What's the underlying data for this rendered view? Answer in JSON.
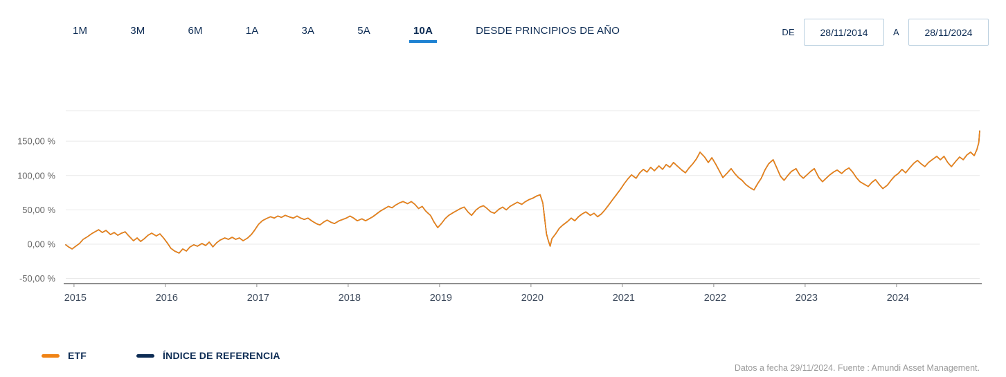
{
  "period_tabs": {
    "items": [
      {
        "label": "1M",
        "active": false
      },
      {
        "label": "3M",
        "active": false
      },
      {
        "label": "6M",
        "active": false
      },
      {
        "label": "1A",
        "active": false
      },
      {
        "label": "3A",
        "active": false
      },
      {
        "label": "5A",
        "active": false
      },
      {
        "label": "10A",
        "active": true
      },
      {
        "label": "DESDE PRINCIPIOS DE AÑO",
        "active": false
      }
    ],
    "active_underline_color": "#1e82d2"
  },
  "date_range": {
    "from_label": "DE",
    "from_value": "28/11/2014",
    "to_label": "A",
    "to_value": "28/11/2024"
  },
  "legend": {
    "items": [
      {
        "label": "ETF",
        "color": "#f08314"
      },
      {
        "label": "ÍNDICE DE REFERENCIA",
        "color": "#0d2c54"
      }
    ]
  },
  "footer": {
    "source_text": "Datos a fecha 29/11/2024. Fuente : Amundi Asset Management."
  },
  "colors": {
    "text_navy": "#0d2c54",
    "etf_orange": "#f08314",
    "benchmark_navy": "#0d2c54",
    "axis_label_gray": "#666666",
    "x_label_gray": "#3d4a5c",
    "grid_line": "#e9e9e9",
    "axis_line": "#8f8f8f",
    "input_border": "#b9cfdf",
    "footer_gray": "#9a9a9a"
  },
  "chart_data": {
    "type": "line",
    "title": "",
    "xlabel": "",
    "ylabel": "",
    "x_start": 2014.91,
    "x_end": 2024.91,
    "x_ticks": [
      2015,
      2016,
      2017,
      2018,
      2019,
      2020,
      2021,
      2022,
      2023,
      2024
    ],
    "y_ticks": [
      150,
      100,
      50,
      0,
      -50
    ],
    "y_tick_labels": [
      "150,00 %",
      "100,00 %",
      "50,00 %",
      "0,00 %",
      "-50,00 %"
    ],
    "ylim": [
      -57.5,
      194.5
    ],
    "grid": true,
    "legend_position": "bottom-left",
    "points_format": "[decimal_year, cumulative_return_pct] - values estimated from gridlines",
    "series": [
      {
        "name": "ÍNDICE DE REFERENCIA",
        "color": "#0d2c54",
        "note": "overlaps ETF line, hidden beneath it"
      },
      {
        "name": "ETF",
        "color": "#f08314"
      }
    ],
    "points": [
      [
        2014.91,
        -1
      ],
      [
        2014.94,
        -4
      ],
      [
        2014.98,
        -7
      ],
      [
        2015.02,
        -3
      ],
      [
        2015.06,
        1
      ],
      [
        2015.1,
        7
      ],
      [
        2015.15,
        11
      ],
      [
        2015.19,
        15
      ],
      [
        2015.23,
        18
      ],
      [
        2015.27,
        21
      ],
      [
        2015.31,
        17
      ],
      [
        2015.35,
        20
      ],
      [
        2015.4,
        14
      ],
      [
        2015.44,
        17
      ],
      [
        2015.48,
        13
      ],
      [
        2015.52,
        16
      ],
      [
        2015.56,
        18
      ],
      [
        2015.6,
        12
      ],
      [
        2015.65,
        5
      ],
      [
        2015.69,
        9
      ],
      [
        2015.73,
        4
      ],
      [
        2015.77,
        8
      ],
      [
        2015.81,
        13
      ],
      [
        2015.85,
        16
      ],
      [
        2015.9,
        12
      ],
      [
        2015.94,
        15
      ],
      [
        2015.98,
        9
      ],
      [
        2016.02,
        2
      ],
      [
        2016.06,
        -6
      ],
      [
        2016.1,
        -10
      ],
      [
        2016.15,
        -13
      ],
      [
        2016.19,
        -7
      ],
      [
        2016.23,
        -10
      ],
      [
        2016.27,
        -4
      ],
      [
        2016.31,
        -1
      ],
      [
        2016.35,
        -3
      ],
      [
        2016.4,
        1
      ],
      [
        2016.44,
        -2
      ],
      [
        2016.48,
        3
      ],
      [
        2016.52,
        -4
      ],
      [
        2016.56,
        2
      ],
      [
        2016.6,
        6
      ],
      [
        2016.65,
        9
      ],
      [
        2016.69,
        7
      ],
      [
        2016.73,
        10
      ],
      [
        2016.77,
        7
      ],
      [
        2016.81,
        9
      ],
      [
        2016.85,
        5
      ],
      [
        2016.9,
        9
      ],
      [
        2016.94,
        14
      ],
      [
        2016.98,
        21
      ],
      [
        2017.02,
        29
      ],
      [
        2017.06,
        34
      ],
      [
        2017.1,
        37
      ],
      [
        2017.15,
        40
      ],
      [
        2017.19,
        38
      ],
      [
        2017.23,
        41
      ],
      [
        2017.27,
        39
      ],
      [
        2017.31,
        42
      ],
      [
        2017.35,
        40
      ],
      [
        2017.4,
        38
      ],
      [
        2017.44,
        41
      ],
      [
        2017.48,
        38
      ],
      [
        2017.52,
        36
      ],
      [
        2017.56,
        38
      ],
      [
        2017.6,
        34
      ],
      [
        2017.65,
        30
      ],
      [
        2017.69,
        28
      ],
      [
        2017.73,
        32
      ],
      [
        2017.77,
        35
      ],
      [
        2017.81,
        32
      ],
      [
        2017.85,
        30
      ],
      [
        2017.9,
        34
      ],
      [
        2017.94,
        36
      ],
      [
        2017.98,
        38
      ],
      [
        2018.02,
        41
      ],
      [
        2018.06,
        38
      ],
      [
        2018.1,
        34
      ],
      [
        2018.15,
        37
      ],
      [
        2018.19,
        34
      ],
      [
        2018.23,
        37
      ],
      [
        2018.27,
        40
      ],
      [
        2018.31,
        44
      ],
      [
        2018.35,
        48
      ],
      [
        2018.4,
        52
      ],
      [
        2018.44,
        55
      ],
      [
        2018.48,
        53
      ],
      [
        2018.52,
        57
      ],
      [
        2018.56,
        60
      ],
      [
        2018.6,
        62
      ],
      [
        2018.65,
        59
      ],
      [
        2018.69,
        62
      ],
      [
        2018.73,
        58
      ],
      [
        2018.77,
        52
      ],
      [
        2018.81,
        55
      ],
      [
        2018.85,
        48
      ],
      [
        2018.9,
        42
      ],
      [
        2018.94,
        32
      ],
      [
        2018.98,
        24
      ],
      [
        2019.02,
        30
      ],
      [
        2019.06,
        37
      ],
      [
        2019.1,
        42
      ],
      [
        2019.15,
        46
      ],
      [
        2019.19,
        49
      ],
      [
        2019.23,
        52
      ],
      [
        2019.27,
        54
      ],
      [
        2019.31,
        47
      ],
      [
        2019.35,
        42
      ],
      [
        2019.4,
        50
      ],
      [
        2019.44,
        54
      ],
      [
        2019.48,
        56
      ],
      [
        2019.52,
        52
      ],
      [
        2019.56,
        47
      ],
      [
        2019.6,
        45
      ],
      [
        2019.65,
        51
      ],
      [
        2019.69,
        54
      ],
      [
        2019.73,
        50
      ],
      [
        2019.77,
        55
      ],
      [
        2019.81,
        58
      ],
      [
        2019.85,
        61
      ],
      [
        2019.9,
        58
      ],
      [
        2019.94,
        62
      ],
      [
        2019.98,
        65
      ],
      [
        2020.02,
        67
      ],
      [
        2020.06,
        70
      ],
      [
        2020.1,
        72
      ],
      [
        2020.13,
        60
      ],
      [
        2020.17,
        15
      ],
      [
        2020.19,
        5
      ],
      [
        2020.21,
        -3
      ],
      [
        2020.23,
        8
      ],
      [
        2020.27,
        15
      ],
      [
        2020.31,
        23
      ],
      [
        2020.35,
        28
      ],
      [
        2020.4,
        33
      ],
      [
        2020.44,
        38
      ],
      [
        2020.48,
        34
      ],
      [
        2020.52,
        40
      ],
      [
        2020.56,
        44
      ],
      [
        2020.6,
        47
      ],
      [
        2020.65,
        42
      ],
      [
        2020.69,
        45
      ],
      [
        2020.73,
        40
      ],
      [
        2020.77,
        44
      ],
      [
        2020.81,
        50
      ],
      [
        2020.85,
        57
      ],
      [
        2020.9,
        66
      ],
      [
        2020.94,
        73
      ],
      [
        2020.98,
        80
      ],
      [
        2021.02,
        88
      ],
      [
        2021.06,
        95
      ],
      [
        2021.1,
        101
      ],
      [
        2021.15,
        96
      ],
      [
        2021.19,
        104
      ],
      [
        2021.23,
        109
      ],
      [
        2021.27,
        105
      ],
      [
        2021.31,
        112
      ],
      [
        2021.35,
        107
      ],
      [
        2021.4,
        114
      ],
      [
        2021.44,
        109
      ],
      [
        2021.48,
        116
      ],
      [
        2021.52,
        112
      ],
      [
        2021.56,
        119
      ],
      [
        2021.6,
        114
      ],
      [
        2021.65,
        108
      ],
      [
        2021.69,
        104
      ],
      [
        2021.73,
        111
      ],
      [
        2021.77,
        117
      ],
      [
        2021.81,
        124
      ],
      [
        2021.85,
        134
      ],
      [
        2021.9,
        127
      ],
      [
        2021.94,
        119
      ],
      [
        2021.98,
        126
      ],
      [
        2022.02,
        117
      ],
      [
        2022.06,
        107
      ],
      [
        2022.1,
        97
      ],
      [
        2022.15,
        104
      ],
      [
        2022.19,
        110
      ],
      [
        2022.23,
        103
      ],
      [
        2022.27,
        97
      ],
      [
        2022.31,
        93
      ],
      [
        2022.35,
        87
      ],
      [
        2022.4,
        82
      ],
      [
        2022.44,
        79
      ],
      [
        2022.48,
        88
      ],
      [
        2022.52,
        96
      ],
      [
        2022.56,
        108
      ],
      [
        2022.6,
        117
      ],
      [
        2022.65,
        123
      ],
      [
        2022.69,
        111
      ],
      [
        2022.73,
        99
      ],
      [
        2022.77,
        93
      ],
      [
        2022.81,
        100
      ],
      [
        2022.85,
        106
      ],
      [
        2022.9,
        110
      ],
      [
        2022.94,
        101
      ],
      [
        2022.98,
        96
      ],
      [
        2023.02,
        101
      ],
      [
        2023.06,
        106
      ],
      [
        2023.1,
        110
      ],
      [
        2023.15,
        97
      ],
      [
        2023.19,
        91
      ],
      [
        2023.23,
        96
      ],
      [
        2023.27,
        101
      ],
      [
        2023.31,
        105
      ],
      [
        2023.35,
        108
      ],
      [
        2023.4,
        103
      ],
      [
        2023.44,
        108
      ],
      [
        2023.48,
        111
      ],
      [
        2023.52,
        105
      ],
      [
        2023.56,
        97
      ],
      [
        2023.6,
        91
      ],
      [
        2023.65,
        87
      ],
      [
        2023.69,
        84
      ],
      [
        2023.73,
        90
      ],
      [
        2023.77,
        94
      ],
      [
        2023.81,
        87
      ],
      [
        2023.85,
        81
      ],
      [
        2023.9,
        86
      ],
      [
        2023.94,
        93
      ],
      [
        2023.98,
        99
      ],
      [
        2024.02,
        103
      ],
      [
        2024.06,
        109
      ],
      [
        2024.1,
        104
      ],
      [
        2024.15,
        112
      ],
      [
        2024.19,
        118
      ],
      [
        2024.23,
        122
      ],
      [
        2024.27,
        117
      ],
      [
        2024.31,
        113
      ],
      [
        2024.35,
        119
      ],
      [
        2024.4,
        124
      ],
      [
        2024.44,
        128
      ],
      [
        2024.48,
        123
      ],
      [
        2024.52,
        128
      ],
      [
        2024.56,
        119
      ],
      [
        2024.6,
        113
      ],
      [
        2024.65,
        121
      ],
      [
        2024.69,
        127
      ],
      [
        2024.73,
        123
      ],
      [
        2024.77,
        130
      ],
      [
        2024.81,
        134
      ],
      [
        2024.85,
        129
      ],
      [
        2024.88,
        138
      ],
      [
        2024.9,
        148
      ],
      [
        2024.91,
        165
      ]
    ]
  }
}
